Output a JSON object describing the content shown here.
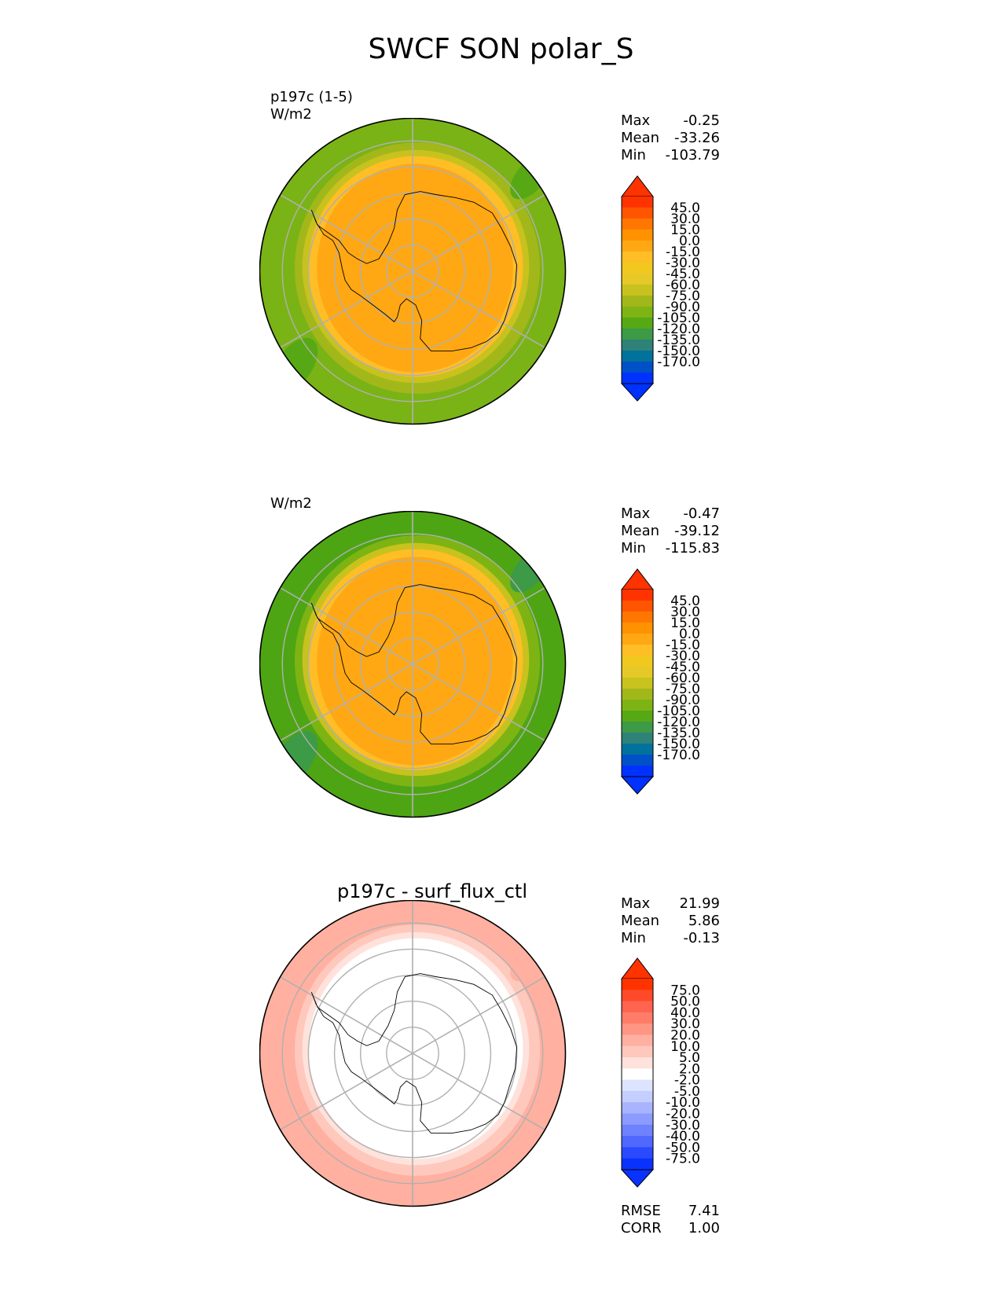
{
  "title": "SWCF SON polar_S",
  "panels": [
    {
      "id": "test",
      "label_lines": [
        "p197c (1-5)",
        "W/m2"
      ],
      "subtitle": "",
      "stats": [
        {
          "label": "Max",
          "value": "-0.25"
        },
        {
          "label": "Mean",
          "value": "-33.26"
        },
        {
          "label": "Min",
          "value": "-103.79"
        }
      ],
      "colorbar": {
        "ticks": [
          "45.0",
          "30.0",
          "15.0",
          "0.0",
          "-15.0",
          "-30.0",
          "-45.0",
          "-60.0",
          "-75.0",
          "-90.0",
          "-105.0",
          "-120.0",
          "-135.0",
          "-150.0",
          "-170.0"
        ],
        "colors": [
          "#ff3300",
          "#ff5500",
          "#ff7700",
          "#ff9200",
          "#ffa814",
          "#ffbe25",
          "#f0c81e",
          "#e6c828",
          "#c8c21e",
          "#a2b71a",
          "#7db414",
          "#56a914",
          "#3d9a46",
          "#2e8277",
          "#00729b",
          "#0050c8",
          "#0032ff"
        ],
        "over": "#ff3300",
        "under": "#0032ff"
      },
      "map_palette": {
        "outer": "#7ab316",
        "ring2": "#a2b71a",
        "ring3": "#c8c21e",
        "ring4": "#ffbe25",
        "inner": "#ffa814",
        "patch": "#56a914"
      }
    },
    {
      "id": "reference",
      "label_lines": [
        "W/m2"
      ],
      "subtitle": "",
      "stats": [
        {
          "label": "Max",
          "value": "-0.47"
        },
        {
          "label": "Mean",
          "value": "-39.12"
        },
        {
          "label": "Min",
          "value": "-115.83"
        }
      ],
      "colorbar": {
        "ticks": [
          "45.0",
          "30.0",
          "15.0",
          "0.0",
          "-15.0",
          "-30.0",
          "-45.0",
          "-60.0",
          "-75.0",
          "-90.0",
          "-105.0",
          "-120.0",
          "-135.0",
          "-150.0",
          "-170.0"
        ],
        "colors": [
          "#ff3300",
          "#ff5500",
          "#ff7700",
          "#ff9200",
          "#ffa814",
          "#ffbe25",
          "#f0c81e",
          "#e6c828",
          "#c8c21e",
          "#a2b71a",
          "#7db414",
          "#56a914",
          "#3d9a46",
          "#2e8277",
          "#00729b",
          "#0050c8",
          "#0032ff"
        ],
        "over": "#ff3300",
        "under": "#0032ff"
      },
      "map_palette": {
        "outer": "#4ea514",
        "ring2": "#7db414",
        "ring3": "#c8c21e",
        "ring4": "#ffbe25",
        "inner": "#ffa814",
        "patch": "#3d9a46"
      }
    },
    {
      "id": "difference",
      "label_lines": [],
      "subtitle": "p197c - surf_flux_ctl",
      "stats": [
        {
          "label": "Max",
          "value": "21.99"
        },
        {
          "label": "Mean",
          "value": "5.86"
        },
        {
          "label": "Min",
          "value": "-0.13"
        }
      ],
      "extra_stats": [
        {
          "label": "RMSE",
          "value": "7.41"
        },
        {
          "label": "CORR",
          "value": "1.00"
        }
      ],
      "colorbar": {
        "ticks": [
          "75.0",
          "50.0",
          "40.0",
          "30.0",
          "20.0",
          "10.0",
          "5.0",
          "2.0",
          "-2.0",
          "-5.0",
          "-10.0",
          "-20.0",
          "-30.0",
          "-40.0",
          "-50.0",
          "-75.0"
        ],
        "colors": [
          "#ff3300",
          "#ff4a2a",
          "#ff6450",
          "#ff7d68",
          "#ff9684",
          "#ffb0a0",
          "#ffc8bc",
          "#ffe2dc",
          "#ffffff",
          "#dce4ff",
          "#c4ceff",
          "#a8b4ff",
          "#8c9bff",
          "#6e82ff",
          "#5068ff",
          "#2a4aff",
          "#0a32ff"
        ],
        "over": "#ff3300",
        "under": "#0a32ff"
      },
      "map_palette": {
        "outer": "#ffb0a0",
        "ring2": "#ffc8bc",
        "ring3": "#ffe2dc",
        "ring4": "#ffffff",
        "inner": "#ffffff",
        "patch": "#ffb0a0"
      }
    }
  ]
}
